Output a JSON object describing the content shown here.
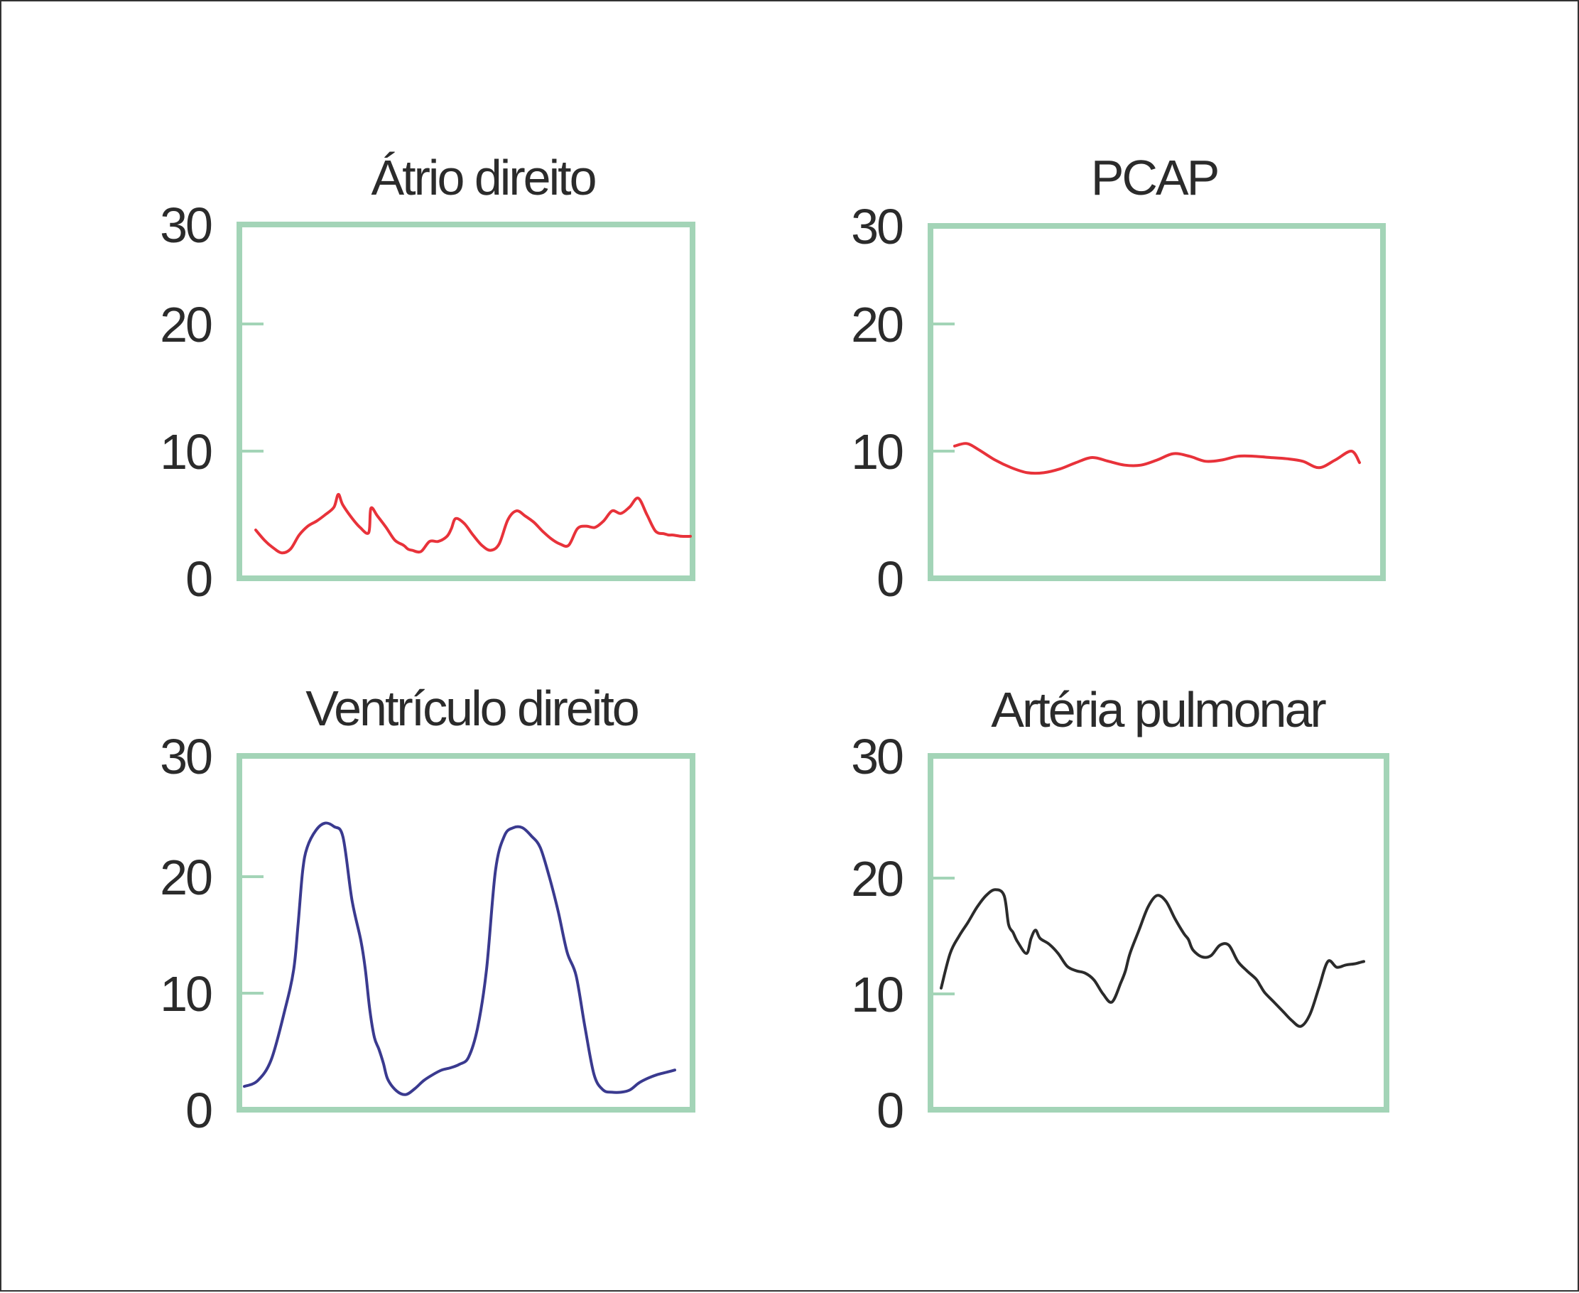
{
  "chart_data": [
    {
      "type": "line",
      "title": "Átrio direito",
      "ylim": [
        0,
        30
      ],
      "yticks": [
        "0",
        "10",
        "20",
        "30"
      ],
      "line_color": "#e8323a",
      "series": [
        {
          "x": [
            0,
            2,
            4,
            6,
            8,
            10,
            12,
            14,
            16,
            18,
            19,
            20,
            22,
            24,
            26,
            26.5,
            28,
            30,
            32,
            34,
            35,
            36,
            38,
            40,
            42,
            44,
            45,
            46,
            48,
            50,
            52,
            54,
            56,
            58,
            60,
            62,
            64,
            66,
            68,
            70,
            72,
            74,
            76,
            78,
            80,
            82,
            84,
            86,
            88,
            90,
            92,
            94,
            95,
            96,
            98,
            100
          ],
          "y": [
            3.8,
            3.0,
            2.4,
            2.0,
            2.3,
            3.4,
            4.1,
            4.5,
            5.0,
            5.6,
            6.6,
            5.8,
            4.8,
            4.0,
            3.6,
            5.5,
            4.9,
            4.0,
            3.0,
            2.6,
            2.3,
            2.2,
            2.1,
            2.9,
            2.9,
            3.3,
            3.9,
            4.7,
            4.3,
            3.4,
            2.6,
            2.2,
            2.7,
            4.6,
            5.3,
            4.9,
            4.4,
            3.7,
            3.1,
            2.7,
            2.6,
            3.9,
            4.1,
            4.0,
            4.5,
            5.3,
            5.1,
            5.6,
            6.3,
            5.0,
            3.7,
            3.5,
            3.4,
            3.4,
            3.3,
            3.3
          ]
        }
      ]
    },
    {
      "type": "line",
      "title": "PCAP",
      "ylim": [
        0,
        30
      ],
      "yticks": [
        "0",
        "10",
        "20",
        "30"
      ],
      "line_color": "#e8323a",
      "series": [
        {
          "x": [
            0,
            3,
            6,
            10,
            14,
            18,
            22,
            26,
            30,
            34,
            38,
            42,
            46,
            50,
            54,
            58,
            62,
            66,
            70,
            74,
            78,
            82,
            86,
            90,
            94,
            98,
            100
          ],
          "y": [
            10.4,
            10.6,
            10.1,
            9.3,
            8.7,
            8.3,
            8.3,
            8.6,
            9.1,
            9.5,
            9.2,
            8.9,
            8.9,
            9.3,
            9.8,
            9.6,
            9.2,
            9.3,
            9.6,
            9.6,
            9.5,
            9.4,
            9.2,
            8.7,
            9.3,
            10.0,
            9.1
          ]
        }
      ]
    },
    {
      "type": "line",
      "title": "Ventrículo direito",
      "ylim": [
        0,
        30
      ],
      "yticks": [
        "0",
        "10",
        "20",
        "30"
      ],
      "line_color": "#3a3a8f",
      "series": [
        {
          "x": [
            0,
            3,
            6,
            9,
            11,
            12,
            13,
            14,
            16,
            18,
            20,
            22,
            24,
            26,
            27,
            28,
            29,
            30,
            31,
            32,
            34,
            36,
            38,
            40,
            42,
            44,
            46,
            48,
            50,
            52,
            54,
            56,
            58,
            60,
            62,
            64,
            66,
            68,
            70,
            72,
            74,
            76,
            78,
            80,
            82,
            84,
            86,
            88,
            90,
            92,
            94,
            96
          ],
          "y": [
            2.0,
            2.5,
            4.3,
            8.5,
            12.0,
            16.0,
            20.5,
            22.5,
            24.0,
            24.6,
            24.3,
            23.4,
            18.0,
            14.5,
            12.0,
            8.5,
            6.2,
            5.2,
            4.0,
            2.6,
            1.6,
            1.3,
            1.8,
            2.5,
            3.0,
            3.4,
            3.6,
            3.9,
            4.5,
            7.0,
            12.0,
            20.5,
            23.5,
            24.2,
            24.2,
            23.5,
            22.5,
            20.0,
            17.0,
            13.5,
            11.5,
            7.0,
            3.0,
            1.7,
            1.5,
            1.5,
            1.7,
            2.3,
            2.7,
            3.0,
            3.2,
            3.4
          ]
        }
      ]
    },
    {
      "type": "line",
      "title": "Artéria pulmonar",
      "ylim": [
        0,
        30
      ],
      "yticks": [
        "0",
        "10",
        "20",
        "30"
      ],
      "line_color": "#2b2b2b",
      "series": [
        {
          "x": [
            0,
            2,
            4,
            6,
            8,
            10,
            12,
            14,
            15,
            16,
            17,
            19,
            20,
            21,
            22,
            24,
            26,
            28,
            30,
            32,
            34,
            36,
            38,
            40,
            41,
            42,
            44,
            46,
            48,
            50,
            52,
            54,
            55,
            56,
            58,
            60,
            62,
            64,
            66,
            68,
            70,
            71,
            72,
            74,
            76,
            78,
            80,
            82,
            84,
            86,
            88,
            90,
            92,
            93,
            94
          ],
          "y": [
            10.5,
            13.5,
            15.0,
            16.2,
            17.5,
            18.5,
            19.0,
            18.5,
            16.0,
            15.3,
            14.5,
            13.5,
            14.8,
            15.5,
            14.8,
            14.3,
            13.5,
            12.4,
            12.0,
            11.8,
            11.2,
            10.0,
            9.3,
            11.0,
            12.0,
            13.5,
            15.5,
            17.5,
            18.5,
            18.0,
            16.5,
            15.2,
            14.7,
            13.8,
            13.2,
            13.3,
            14.2,
            14.2,
            12.8,
            12.0,
            11.3,
            10.7,
            10.1,
            9.3,
            8.5,
            7.7,
            7.2,
            8.2,
            10.5,
            12.8,
            12.3,
            12.5,
            12.6,
            12.7,
            12.8
          ]
        }
      ]
    }
  ]
}
